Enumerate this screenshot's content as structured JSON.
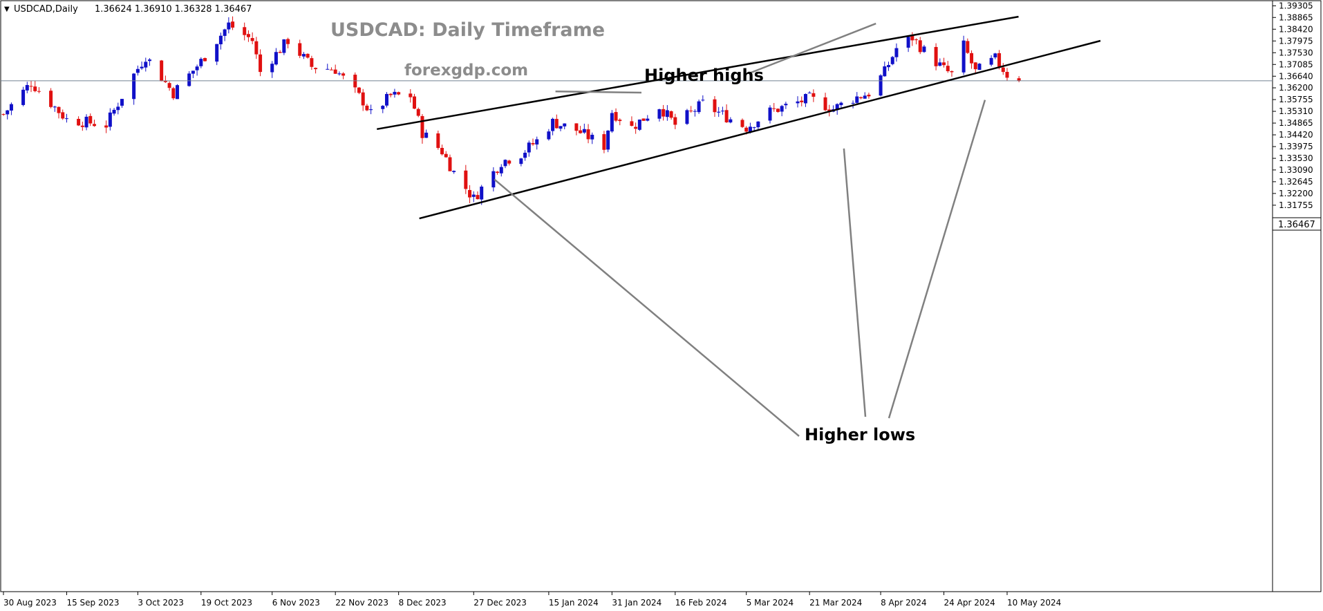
{
  "header": {
    "symbol": "USDCAD,Daily",
    "ohlc": "1.36624 1.36910 1.36328 1.36467"
  },
  "chart_data": {
    "type": "candlestick",
    "title": "USDCAD: Daily Timeframe",
    "subtitle": "forexgdp.com",
    "ylim": [
      1.1712,
      1.395
    ],
    "y_ticks": [
      1.39305,
      1.38865,
      1.3842,
      1.37975,
      1.3753,
      1.37085,
      1.3664,
      1.362,
      1.35755,
      1.3531,
      1.34865,
      1.3442,
      1.33975,
      1.3353,
      1.3309,
      1.32645,
      1.322,
      1.31755
    ],
    "x_labels": [
      "30 Aug 2023",
      "15 Sep 2023",
      "3 Oct 2023",
      "19 Oct 2023",
      "6 Nov 2023",
      "22 Nov 2023",
      "8 Dec 2023",
      "27 Dec 2023",
      "15 Jan 2024",
      "31 Jan 2024",
      "16 Feb 2024",
      "5 Mar 2024",
      "21 Mar 2024",
      "8 Apr 2024",
      "24 Apr 2024",
      "10 May 2024"
    ],
    "current_price": "1.36467",
    "colors": {
      "up": "#1010c8",
      "down": "#e01010",
      "line": "#000000",
      "arrow": "#808080",
      "price_line": "#708090"
    },
    "annotations": [
      {
        "text": "Higher highs",
        "targets": 2
      },
      {
        "text": "Higher lows",
        "targets": 3
      }
    ],
    "channel": {
      "upper": [
        [
          "16 Dec 2023",
          1.3499
        ],
        [
          "15 May 2024",
          1.3895
        ]
      ],
      "lower": [
        [
          "27 Dec 2023",
          1.3179
        ],
        [
          "20 May 2024",
          1.3745
        ]
      ]
    },
    "candles": []
  }
}
